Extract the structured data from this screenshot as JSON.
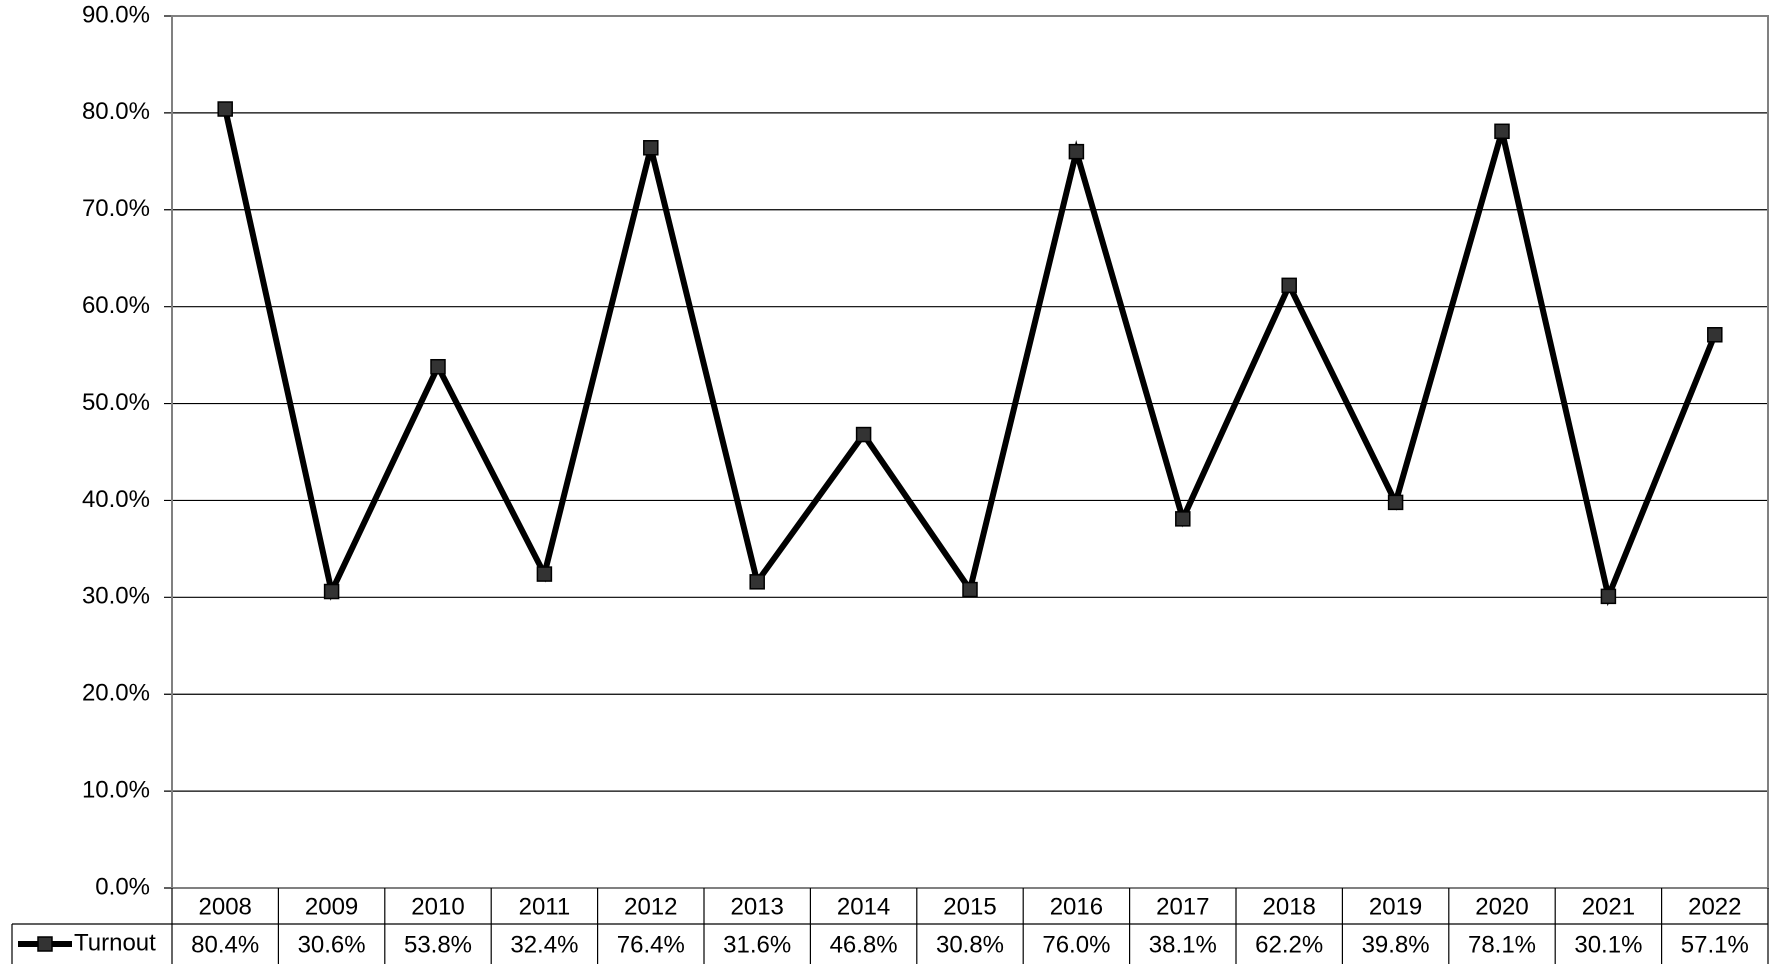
{
  "chart_data": {
    "type": "line",
    "title": "",
    "xlabel": "",
    "ylabel": "",
    "categories": [
      "2008",
      "2009",
      "2010",
      "2011",
      "2012",
      "2013",
      "2014",
      "2015",
      "2016",
      "2017",
      "2018",
      "2019",
      "2020",
      "2021",
      "2022"
    ],
    "series": [
      {
        "name": "Turnout",
        "values": [
          80.4,
          30.6,
          53.8,
          32.4,
          76.4,
          31.6,
          46.8,
          30.8,
          76.0,
          38.1,
          62.2,
          39.8,
          78.1,
          30.1,
          57.1
        ],
        "value_labels": [
          "80.4%",
          "30.6%",
          "53.8%",
          "32.4%",
          "76.4%",
          "31.6%",
          "46.8%",
          "30.8%",
          "76.0%",
          "38.1%",
          "62.2%",
          "39.8%",
          "78.1%",
          "30.1%",
          "57.1%"
        ],
        "color": "#000000",
        "marker": "square",
        "marker_color": "#333333"
      }
    ],
    "ylim": [
      0,
      90
    ],
    "yticks": [
      0,
      10,
      20,
      30,
      40,
      50,
      60,
      70,
      80,
      90
    ],
    "ytick_labels": [
      "0.0%",
      "10.0%",
      "20.0%",
      "30.0%",
      "40.0%",
      "50.0%",
      "60.0%",
      "70.0%",
      "80.0%",
      "90.0%"
    ],
    "grid": true,
    "legend": "data-table-left"
  }
}
